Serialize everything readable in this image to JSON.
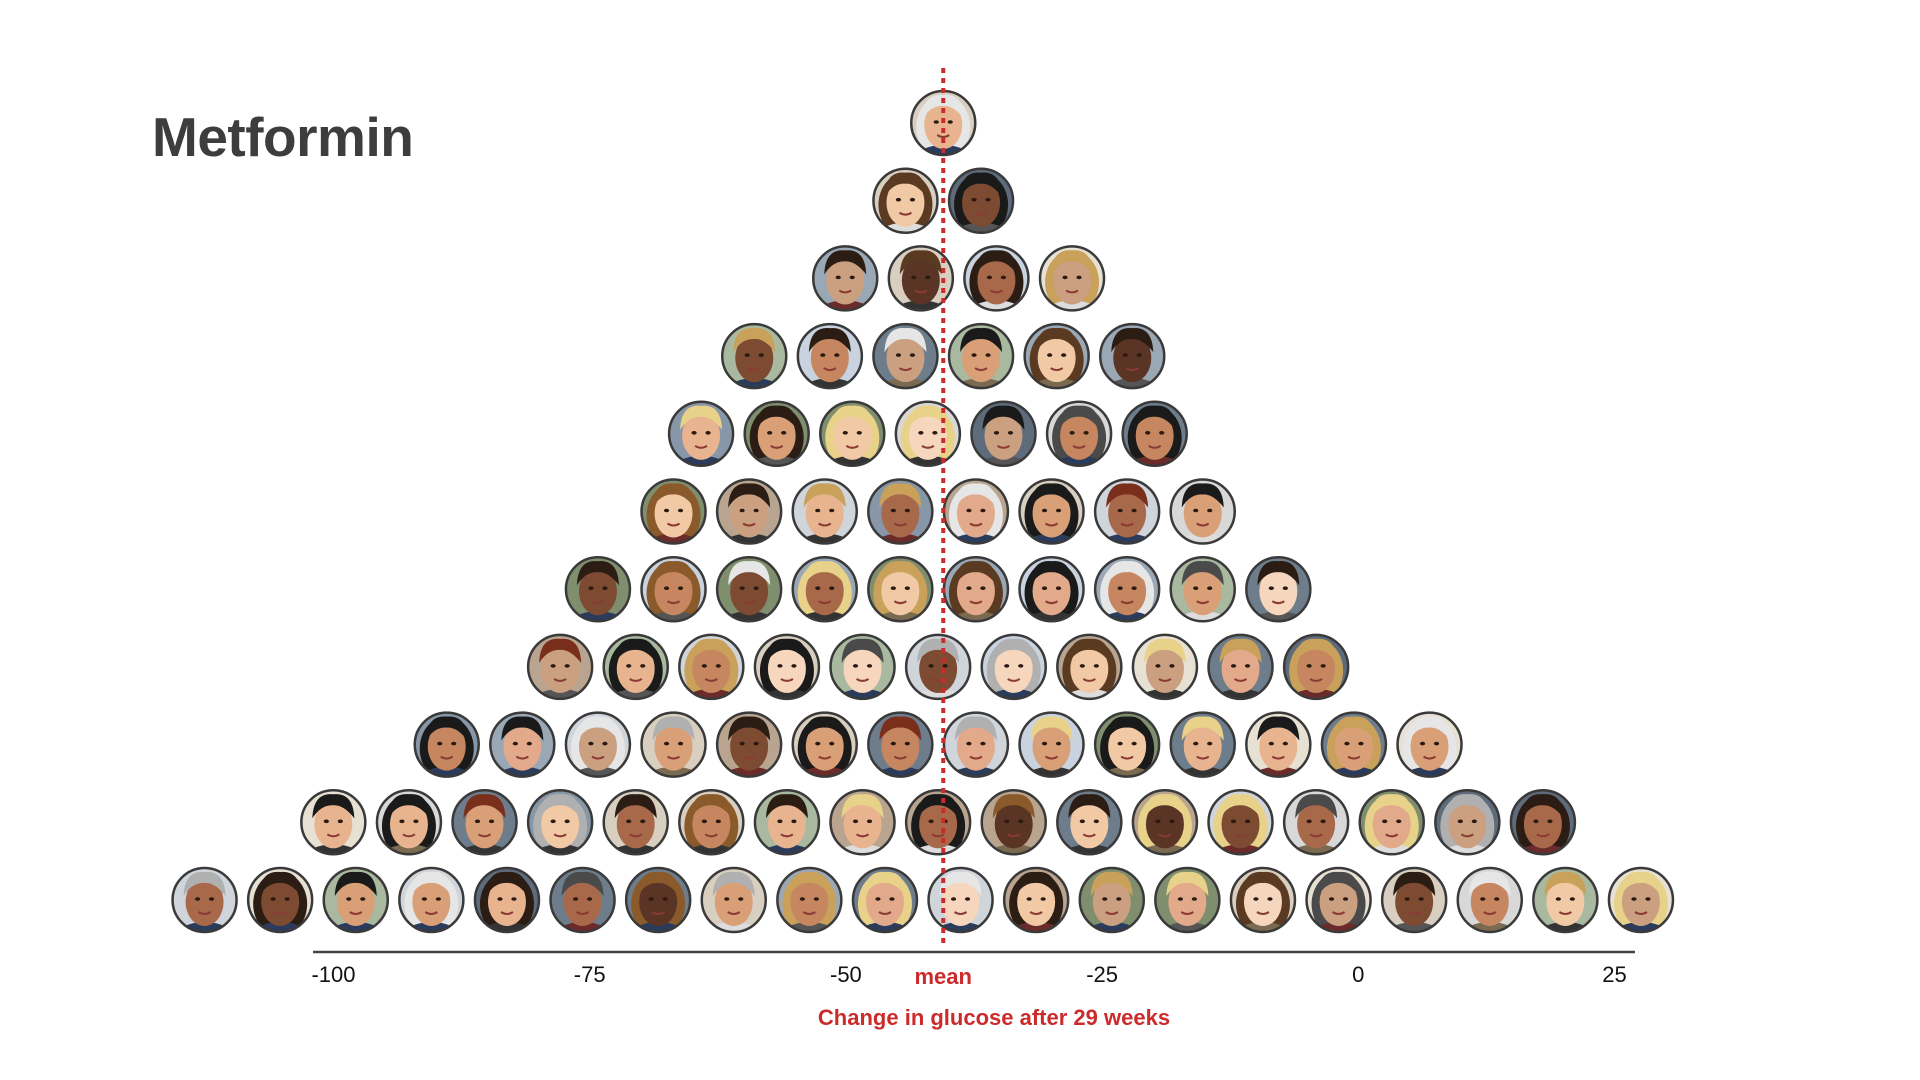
{
  "colors": {
    "title": "#3d3d3d",
    "accent_red": "#cc2b2b",
    "axis": "#444444",
    "ring": "#3a3a3a"
  },
  "chart_data": {
    "type": "dot-pyramid (isotype histogram of faces)",
    "title": "Metformin",
    "xlabel": "Change in glucose after 29 weeks",
    "ylabel": "",
    "xlim": [
      -102,
      27
    ],
    "x_ticks": [
      {
        "value": -100,
        "label": "-100"
      },
      {
        "value": -75,
        "label": "-75"
      },
      {
        "value": -50,
        "label": "-50"
      },
      {
        "value": -25,
        "label": "-25"
      },
      {
        "value": 0,
        "label": "0"
      },
      {
        "value": 25,
        "label": "25"
      }
    ],
    "mean": {
      "value": -40.5,
      "label": "mean"
    },
    "row_counts_bottom_to_top": [
      20,
      17,
      14,
      11,
      10,
      8,
      7,
      6,
      4,
      2,
      1
    ],
    "rows_bottom_to_top": [
      {
        "center": -42.5,
        "count": 20
      },
      {
        "center": -41.0,
        "count": 17
      },
      {
        "center": -41.0,
        "count": 14
      },
      {
        "center": -41.0,
        "count": 11
      },
      {
        "center": -41.0,
        "count": 10
      },
      {
        "center": -41.0,
        "count": 8
      },
      {
        "center": -42.0,
        "count": 7
      },
      {
        "center": -40.5,
        "count": 6
      },
      {
        "center": -39.0,
        "count": 4
      },
      {
        "center": -40.5,
        "count": 2
      },
      {
        "center": -40.5,
        "count": 1
      }
    ],
    "total_participants": 100,
    "grid": false,
    "legend": "none"
  }
}
